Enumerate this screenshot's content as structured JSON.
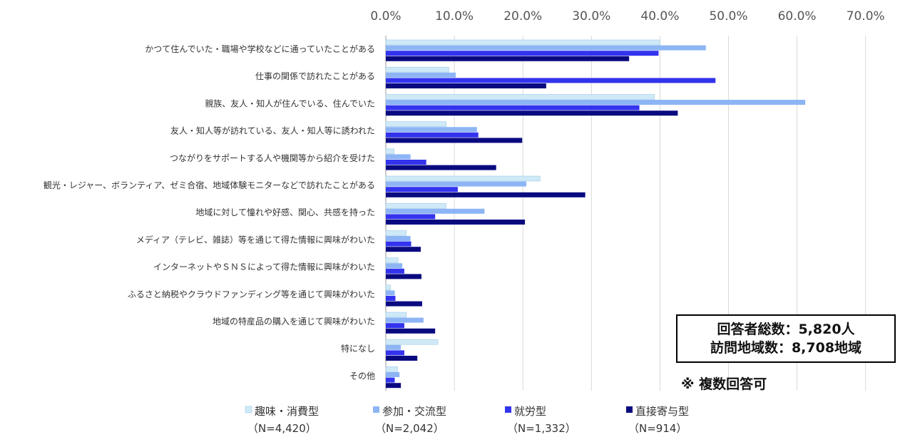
{
  "chart_data": {
    "type": "bar",
    "orientation": "horizontal",
    "categories": [
      "かつて住んでいた・職場や学校などに通っていたことがある",
      "仕事の関係で訪れたことがある",
      "親族、友人・知人が住んでいる、住んでいた",
      "友人・知人等が訪れている、友人・知人等に誘われた",
      "つながりをサポートする人や機関等から紹介を受けた",
      "観光・レジャー、ボランティア、ゼミ合宿、地域体験モニターなどで訪れたことがある",
      "地域に対して憧れや好感、関心、共感を持った",
      "メディア（テレビ、雑誌）等を通じて得た情報に興味がわいた",
      "インターネットやＳＮＳによって得た情報に興味がわいた",
      "ふるさと納税やクラウドファンディング等を通じて興味がわいた",
      "地域の特産品の購入を通じて興味がわいた",
      "特になし",
      "その他"
    ],
    "series": [
      {
        "name": "趣味・消費型",
        "n_label": "（N=4,420）",
        "color": "#cfe9f7",
        "values": [
          40.0,
          9.2,
          39.2,
          8.8,
          1.2,
          22.5,
          8.8,
          3.0,
          1.8,
          0.7,
          3.0,
          7.6,
          1.7
        ]
      },
      {
        "name": "参加・交流型",
        "n_label": "（N=2,042）",
        "color": "#8db5f5",
        "values": [
          46.7,
          10.2,
          61.2,
          13.3,
          3.6,
          20.5,
          14.4,
          3.6,
          2.4,
          1.3,
          5.5,
          2.2,
          2.0
        ]
      },
      {
        "name": "就労型",
        "n_label": "（N=1,332）",
        "color": "#3333ee",
        "values": [
          39.8,
          48.1,
          37.0,
          13.5,
          5.9,
          10.5,
          7.2,
          3.7,
          2.7,
          1.4,
          2.7,
          2.7,
          1.3
        ]
      },
      {
        "name": "直接寄与型",
        "n_label": "（N=914）",
        "color": "#0a0a80",
        "values": [
          35.5,
          23.4,
          42.6,
          19.9,
          16.1,
          29.1,
          20.3,
          5.1,
          5.2,
          5.3,
          7.2,
          4.6,
          2.2
        ]
      }
    ],
    "xlim": [
      0,
      70
    ],
    "x_ticks": [
      "0.0%",
      "10.0%",
      "20.0%",
      "30.0%",
      "40.0%",
      "50.0%",
      "60.0%",
      "70.0%"
    ],
    "tick_values": [
      0,
      10,
      20,
      30,
      40,
      50,
      60,
      70
    ],
    "axis_position": "top",
    "grid": true,
    "legend_position": "bottom"
  },
  "info_box": {
    "line1": "回答者総数：5,820人",
    "line2": "訪問地域数：8,708地域"
  },
  "note": "※ 複数回答可"
}
